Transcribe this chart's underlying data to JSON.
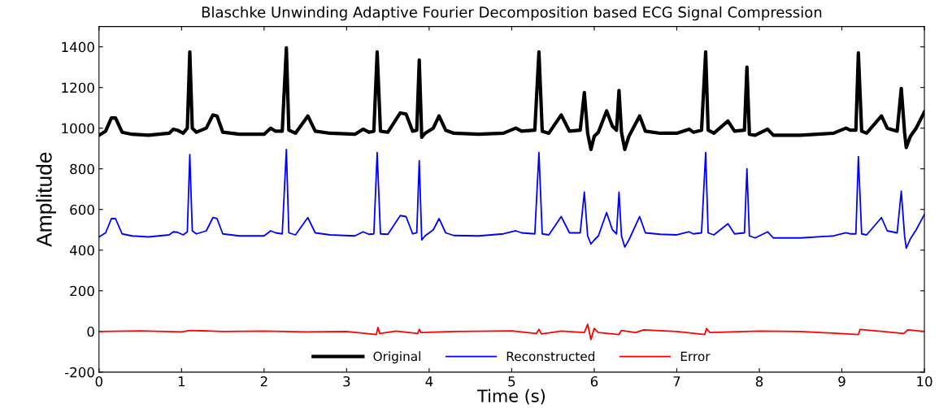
{
  "chart_data": {
    "type": "line",
    "title": "Blaschke Unwinding Adaptive Fourier Decomposition based ECG Signal Compression",
    "xlabel": "Time (s)",
    "ylabel": "Amplitude",
    "xlim": [
      0,
      10
    ],
    "ylim": [
      -200,
      1500
    ],
    "xticks": [
      0,
      1,
      2,
      3,
      4,
      5,
      6,
      7,
      8,
      9,
      10
    ],
    "yticks": [
      -200,
      0,
      200,
      400,
      600,
      800,
      1000,
      1200,
      1400
    ],
    "grid": false,
    "legend": "bottom",
    "marker": "none",
    "line_style": "solid",
    "series": [
      {
        "name": "Original",
        "color": "#000000",
        "x": [
          0,
          0.08,
          0.15,
          0.2,
          0.28,
          0.4,
          0.6,
          0.85,
          0.9,
          0.95,
          1.02,
          1.07,
          1.1,
          1.13,
          1.18,
          1.3,
          1.38,
          1.43,
          1.5,
          1.7,
          2.0,
          2.08,
          2.14,
          2.22,
          2.27,
          2.3,
          2.38,
          2.53,
          2.62,
          2.8,
          3.1,
          3.2,
          3.27,
          3.33,
          3.37,
          3.41,
          3.5,
          3.65,
          3.72,
          3.8,
          3.85,
          3.88,
          3.91,
          3.95,
          4.05,
          4.12,
          4.2,
          4.3,
          4.6,
          4.9,
          5.05,
          5.12,
          5.28,
          5.33,
          5.37,
          5.45,
          5.6,
          5.7,
          5.83,
          5.88,
          5.92,
          5.96,
          6.0,
          6.05,
          6.15,
          6.22,
          6.27,
          6.3,
          6.33,
          6.37,
          6.42,
          6.55,
          6.62,
          6.8,
          7.0,
          7.15,
          7.2,
          7.3,
          7.35,
          7.38,
          7.45,
          7.62,
          7.7,
          7.82,
          7.85,
          7.88,
          7.95,
          8.1,
          8.17,
          8.5,
          8.9,
          9.05,
          9.1,
          9.17,
          9.2,
          9.24,
          9.3,
          9.48,
          9.55,
          9.67,
          9.72,
          9.76,
          9.78,
          9.83,
          9.9,
          10
        ],
        "values": [
          965,
          985,
          1050,
          1050,
          980,
          970,
          965,
          975,
          995,
          990,
          975,
          1000,
          1375,
          1000,
          980,
          1000,
          1065,
          1060,
          980,
          970,
          970,
          1000,
          985,
          985,
          1395,
          990,
          975,
          1060,
          985,
          975,
          970,
          995,
          980,
          985,
          1375,
          985,
          980,
          1075,
          1070,
          985,
          990,
          1335,
          955,
          975,
          1000,
          1060,
          990,
          975,
          970,
          975,
          1000,
          985,
          990,
          1375,
          985,
          975,
          1065,
          985,
          990,
          1175,
          975,
          895,
          960,
          980,
          1085,
          1010,
          990,
          1185,
          980,
          895,
          960,
          1060,
          985,
          975,
          975,
          995,
          980,
          990,
          1375,
          990,
          975,
          1035,
          985,
          990,
          1300,
          970,
          965,
          995,
          965,
          965,
          975,
          1000,
          990,
          990,
          1370,
          985,
          975,
          1060,
          1000,
          985,
          1195,
          980,
          905,
          960,
          1000,
          1080
        ]
      },
      {
        "name": "Reconstructed",
        "color": "#0000ff",
        "x": [
          0,
          0.08,
          0.15,
          0.2,
          0.28,
          0.4,
          0.6,
          0.85,
          0.9,
          0.95,
          1.02,
          1.07,
          1.1,
          1.13,
          1.18,
          1.3,
          1.38,
          1.43,
          1.5,
          1.7,
          2.0,
          2.08,
          2.14,
          2.22,
          2.27,
          2.3,
          2.38,
          2.53,
          2.62,
          2.8,
          3.1,
          3.2,
          3.27,
          3.33,
          3.37,
          3.41,
          3.5,
          3.65,
          3.72,
          3.8,
          3.85,
          3.88,
          3.91,
          3.95,
          4.05,
          4.12,
          4.2,
          4.3,
          4.6,
          4.9,
          5.05,
          5.12,
          5.28,
          5.33,
          5.37,
          5.45,
          5.6,
          5.7,
          5.83,
          5.88,
          5.92,
          5.96,
          6.0,
          6.05,
          6.15,
          6.22,
          6.27,
          6.3,
          6.33,
          6.37,
          6.42,
          6.55,
          6.62,
          6.8,
          7.0,
          7.15,
          7.2,
          7.3,
          7.35,
          7.38,
          7.45,
          7.62,
          7.7,
          7.82,
          7.85,
          7.88,
          7.95,
          8.1,
          8.17,
          8.5,
          8.9,
          9.05,
          9.1,
          9.17,
          9.2,
          9.24,
          9.3,
          9.48,
          9.55,
          9.67,
          9.72,
          9.76,
          9.78,
          9.83,
          9.9,
          10
        ],
        "values": [
          465,
          485,
          555,
          555,
          480,
          470,
          465,
          475,
          490,
          488,
          475,
          490,
          870,
          495,
          480,
          495,
          560,
          555,
          480,
          470,
          470,
          495,
          485,
          480,
          895,
          485,
          475,
          560,
          485,
          475,
          470,
          490,
          478,
          480,
          880,
          480,
          478,
          570,
          565,
          480,
          485,
          840,
          450,
          470,
          500,
          555,
          485,
          472,
          470,
          480,
          495,
          485,
          480,
          880,
          480,
          475,
          565,
          485,
          485,
          685,
          470,
          430,
          450,
          470,
          585,
          500,
          480,
          685,
          470,
          415,
          450,
          565,
          485,
          478,
          475,
          490,
          480,
          485,
          880,
          485,
          475,
          530,
          480,
          485,
          800,
          470,
          460,
          490,
          460,
          460,
          470,
          485,
          480,
          480,
          860,
          480,
          475,
          560,
          495,
          485,
          690,
          470,
          410,
          455,
          500,
          575
        ]
      },
      {
        "name": "Error",
        "color": "#ff0000",
        "x": [
          0,
          0.5,
          1,
          1.1,
          1.5,
          2,
          2.5,
          3,
          3.36,
          3.38,
          3.4,
          3.6,
          3.86,
          3.88,
          3.9,
          4.3,
          5,
          5.3,
          5.33,
          5.36,
          5.6,
          5.88,
          5.92,
          5.96,
          6.0,
          6.05,
          6.3,
          6.33,
          6.5,
          6.6,
          7,
          7.34,
          7.36,
          7.4,
          8,
          8.5,
          9.2,
          9.22,
          9.5,
          9.75,
          9.8,
          10
        ],
        "values": [
          0,
          3,
          -2,
          5,
          0,
          2,
          -2,
          0,
          -15,
          20,
          -10,
          2,
          -10,
          10,
          -5,
          0,
          3,
          -10,
          10,
          -12,
          2,
          -5,
          35,
          -40,
          15,
          -5,
          -15,
          5,
          -5,
          8,
          0,
          -15,
          15,
          -5,
          2,
          0,
          -15,
          10,
          0,
          -10,
          8,
          0
        ]
      }
    ]
  }
}
